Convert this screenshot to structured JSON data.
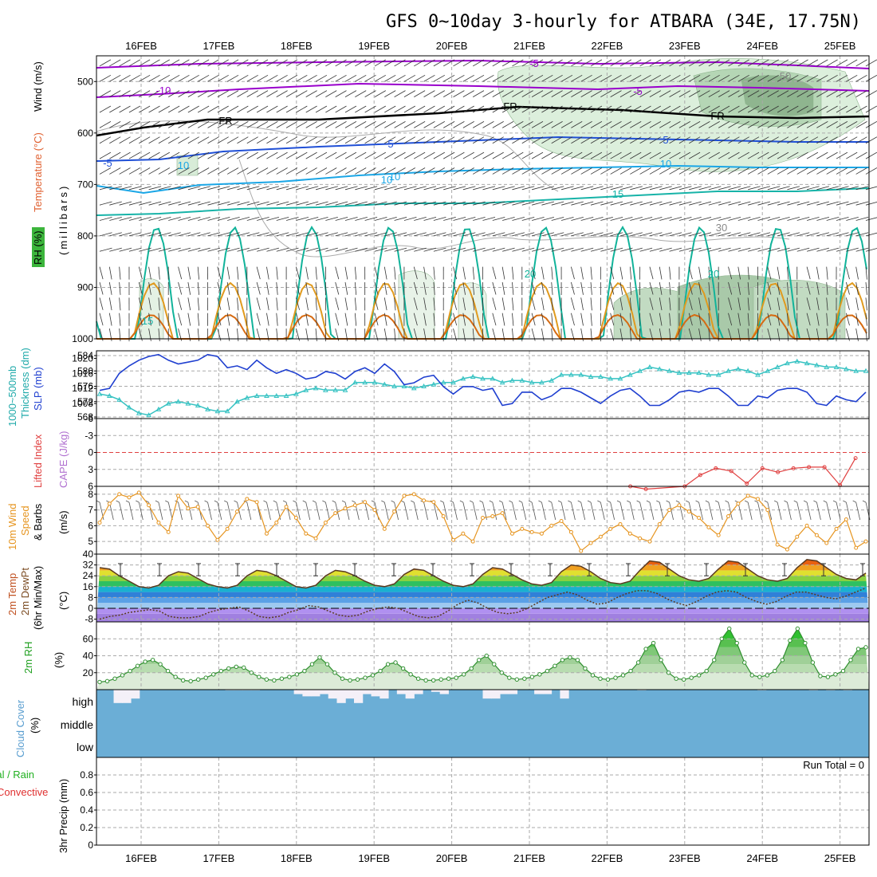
{
  "title": "GFS 0~10day 3-hourly for ATBARA (34E, 17.75N)",
  "dates": [
    "16FEB",
    "17FEB",
    "18FEB",
    "19FEB",
    "20FEB",
    "21FEB",
    "22FEB",
    "23FEB",
    "24FEB",
    "25FEB"
  ],
  "colors": {
    "temp_minus10": "#9900cc",
    "temp_minus5": "#9900cc",
    "temp_fr": "#000000",
    "temp_5": "#1f4fd6",
    "temp_10": "#1aa6e6",
    "temp_15": "#17b3a8",
    "temp_20": "#11b39a",
    "temp_25": "#e09a1e",
    "temp_30": "#d66b12",
    "slp": "#1f3fd0",
    "thickness": "#35c2c2",
    "lifted": "#e04040",
    "wind10": "#e69520",
    "rh2m": "#2f8f2f",
    "cloud": "#6baed6",
    "rh_shade": "#d8ecd8"
  },
  "panels": {
    "upper": {
      "labels": [
        "RH (%)",
        "Temperature (°C)",
        "Wind (m/s)",
        "(millibars)"
      ],
      "yticks": [
        "500",
        "600",
        "700",
        "800",
        "900",
        "1000"
      ],
      "contour_labels": [
        "-10",
        "-5",
        "-5",
        "FR",
        "FR",
        "FR",
        "-5",
        "5",
        "5",
        "10",
        "10",
        "15",
        "20",
        "20",
        "15",
        "10",
        "10",
        "50",
        "30"
      ]
    },
    "slp": {
      "labels": [
        "1000~500mb",
        "Thickness (dm)",
        "SLP (mb)"
      ],
      "yticks_left": [
        "584",
        "580",
        "576",
        "572",
        "568"
      ],
      "yticks_right": [
        "1020",
        "1016",
        "1012",
        "1008"
      ]
    },
    "cape": {
      "labels": [
        "Lifted Index",
        "CAPE (J/kg)"
      ],
      "yticks": [
        "-6",
        "-3",
        "0",
        "3",
        "6"
      ]
    },
    "wind10m": {
      "labels": [
        "10m Wind",
        "Speed",
        "& Barbs",
        "(m/s)"
      ],
      "yticks": [
        "8",
        "7",
        "6",
        "5"
      ]
    },
    "temp2m": {
      "labels": [
        "2m Temp",
        "2m DewPt",
        "(6hr Min/Max)",
        "(°C)"
      ],
      "yticks": [
        "40",
        "32",
        "24",
        "16",
        "8",
        "0",
        "-8"
      ]
    },
    "rh2m": {
      "labels": [
        "2m RH",
        "(%)"
      ],
      "yticks": [
        "60",
        "40",
        "20"
      ]
    },
    "cloud": {
      "labels": [
        "Cloud Cover",
        "(%)"
      ],
      "levels": [
        "high",
        "middle",
        "low"
      ]
    },
    "precip": {
      "labels": [
        "Total / Rain",
        "Convective",
        "3hr Precip (mm)"
      ],
      "yticks": [
        "0.8",
        "0.6",
        "0.4",
        "0.2",
        "0"
      ],
      "run_total": "Run Total = 0"
    }
  },
  "chart_data": {
    "type": "line",
    "x_dates": [
      "16FEB",
      "17FEB",
      "18FEB",
      "19FEB",
      "20FEB",
      "21FEB",
      "22FEB",
      "23FEB",
      "24FEB",
      "25FEB"
    ],
    "slp_mb": [
      1011.5,
      1012,
      1016,
      1018,
      1019.5,
      1020.5,
      1021,
      1019.5,
      1018.5,
      1019,
      1019.5,
      1021,
      1020.5,
      1017.5,
      1018,
      1017,
      1019.5,
      1017.5,
      1016,
      1017,
      1016,
      1014.5,
      1015,
      1016.5,
      1016,
      1014.5,
      1016.5,
      1017.5,
      1016,
      1018.5,
      1016.5,
      1013,
      1013.5,
      1015,
      1015.5,
      1012.5,
      1010.5,
      1012.5,
      1012.5,
      1011.5,
      1012,
      1007.5,
      1008,
      1011,
      1011,
      1009,
      1010,
      1012,
      1012,
      1011,
      1009.5,
      1008,
      1010,
      1011.5,
      1012,
      1010,
      1007.5,
      1007.5,
      1009,
      1011,
      1011.5,
      1011,
      1012,
      1012,
      1010,
      1007.5,
      1007.5,
      1010,
      1009.5,
      1011.5,
      1012,
      1012,
      1011,
      1008,
      1007.5,
      1010,
      1009,
      1008.5,
      1011
    ],
    "thickness_dm": [
      574,
      573.5,
      572.5,
      570.5,
      569,
      568.5,
      570,
      571.5,
      572,
      571.5,
      571,
      570,
      569.5,
      569.5,
      572,
      573,
      573.5,
      573.5,
      573.5,
      573.5,
      574,
      575,
      575.5,
      575,
      575,
      575,
      577,
      577,
      577,
      576.5,
      576,
      576,
      575.5,
      576,
      576.5,
      577,
      577,
      578,
      578.5,
      578,
      578,
      577,
      577.5,
      577.5,
      577,
      577,
      577.5,
      579,
      579,
      579,
      578.5,
      578.5,
      578,
      578,
      579,
      580,
      581,
      580.5,
      580,
      579.5,
      579.5,
      579.5,
      579,
      579,
      580,
      580.5,
      580,
      579,
      580,
      581,
      582,
      582.5,
      582,
      581.5,
      581,
      581,
      580.5,
      580,
      580
    ],
    "lifted_index_points": [
      [
        22.3,
        6
      ],
      [
        22.5,
        6.5
      ],
      [
        23.0,
        6
      ],
      [
        23.2,
        4
      ],
      [
        23.4,
        2.8
      ],
      [
        23.6,
        3.3
      ],
      [
        23.8,
        5.5
      ],
      [
        24.0,
        2.8
      ],
      [
        24.2,
        3.5
      ],
      [
        24.4,
        2.8
      ],
      [
        24.6,
        2.6
      ],
      [
        24.8,
        2.6
      ],
      [
        25.0,
        5.8
      ],
      [
        25.2,
        1
      ]
    ],
    "wind10m_ms": [
      6.2,
      7.4,
      8.0,
      7.8,
      8.1,
      7.3,
      6.2,
      5.6,
      7.9,
      7.1,
      7.2,
      6.0,
      5.1,
      5.8,
      6.9,
      7.7,
      7.5,
      5.5,
      6.2,
      7.2,
      6.5,
      5.5,
      5.2,
      6.2,
      6.8,
      7.1,
      7.3,
      7.5,
      7.0,
      5.8,
      6.9,
      7.9,
      8.0,
      7.6,
      7.5,
      6.6,
      5.1,
      5.5,
      5.0,
      6.5,
      6.6,
      6.8,
      5.5,
      5.8,
      5.6,
      5.5,
      6.0,
      6.3,
      5.6,
      4.4,
      4.9,
      5.3,
      5.8,
      6.1,
      5.5,
      5.2,
      5.0,
      6.1,
      7.0,
      7.3,
      6.9,
      6.5,
      5.9,
      5.4,
      6.6,
      7.4,
      7.9,
      7.7,
      7.0,
      4.8,
      4.5,
      5.3,
      6.0,
      5.4,
      4.9,
      5.8,
      6.4,
      4.6,
      5.0
    ],
    "temp2m_c": [
      30,
      29,
      24,
      20,
      16,
      15,
      17,
      24,
      27,
      26,
      22,
      18,
      16,
      15,
      17,
      24,
      28,
      27,
      24,
      20,
      16,
      15,
      17,
      24,
      28,
      27,
      24,
      20,
      17,
      16,
      18,
      25,
      29,
      28,
      24,
      20,
      17,
      16,
      18,
      25,
      30,
      29,
      25,
      21,
      18,
      17,
      19,
      27,
      32,
      31,
      27,
      22,
      19,
      18,
      20,
      28,
      35,
      34,
      29,
      24,
      21,
      20,
      22,
      29,
      35,
      34,
      29,
      24,
      21,
      20,
      22,
      30,
      36,
      35,
      30,
      25,
      22,
      21,
      26
    ],
    "dewpt2m_c": [
      -8,
      -6,
      -5,
      -3,
      -2,
      -1,
      -2,
      -6,
      -7,
      -7,
      -6,
      -3,
      -1,
      0,
      1,
      -2,
      -6,
      -7,
      -6,
      -3,
      -1,
      2,
      1,
      -2,
      -5,
      -6,
      -5,
      -2,
      0,
      1,
      0,
      -3,
      -6,
      -7,
      -6,
      -2,
      3,
      6,
      4,
      0,
      -3,
      -4,
      -3,
      0,
      4,
      8,
      10,
      12,
      10,
      6,
      3,
      4,
      8,
      11,
      13,
      13,
      11,
      7,
      4,
      2,
      5,
      9,
      12,
      13,
      12,
      8,
      5,
      3,
      5,
      9,
      12,
      12,
      10,
      8,
      7,
      9,
      12,
      15
    ],
    "rh2m_pct": [
      9,
      10,
      13,
      17,
      22,
      28,
      33,
      35,
      30,
      22,
      15,
      11,
      10,
      12,
      14,
      18,
      22,
      25,
      27,
      26,
      20,
      15,
      12,
      11,
      13,
      15,
      18,
      22,
      30,
      38,
      30,
      20,
      13,
      11,
      12,
      14,
      17,
      22,
      30,
      32,
      25,
      18,
      13,
      11,
      11,
      12,
      13,
      14,
      18,
      25,
      35,
      40,
      30,
      20,
      14,
      12,
      13,
      15,
      18,
      22,
      28,
      35,
      38,
      35,
      25,
      17,
      13,
      12,
      14,
      17,
      22,
      32,
      48,
      55,
      35,
      20,
      13,
      12,
      14,
      17,
      22,
      35,
      60,
      72,
      55,
      32,
      17,
      15,
      17,
      22,
      35,
      58,
      72,
      55,
      32,
      16,
      15,
      18,
      22,
      35,
      48,
      50
    ],
    "cloud_high_pct": [
      100,
      100,
      40,
      40,
      60,
      100,
      100,
      100,
      100,
      100,
      100,
      100,
      100,
      100,
      100,
      97,
      97,
      97,
      97,
      100,
      100,
      100,
      100,
      80,
      70,
      70,
      80,
      60,
      40,
      60,
      40,
      80,
      70,
      60,
      100,
      80,
      60,
      80,
      100,
      90,
      80,
      100,
      100,
      100,
      100,
      60,
      60,
      80,
      80,
      100,
      100,
      80,
      80,
      100,
      60,
      100,
      100,
      100,
      100,
      100,
      100,
      100,
      100,
      97,
      100,
      100,
      100,
      100,
      100,
      100,
      100,
      100,
      100,
      100,
      100,
      100,
      100,
      97,
      100,
      100,
      100,
      100,
      100,
      97,
      100,
      97,
      100,
      97,
      100,
      100
    ],
    "precip_mm": [
      0,
      0,
      0,
      0,
      0,
      0,
      0,
      0,
      0,
      0
    ],
    "pressure_ylim": [
      450,
      1000
    ],
    "slp_ylim": [
      1004,
      1022
    ],
    "thickness_ylim": [
      568,
      584
    ],
    "cape_ylim": [
      -6,
      6
    ],
    "wind_ylim": [
      4.2,
      8.5
    ],
    "temp_ylim": [
      -10,
      40
    ],
    "rh_ylim": [
      0,
      80
    ],
    "precip_ylim": [
      0,
      1
    ]
  }
}
